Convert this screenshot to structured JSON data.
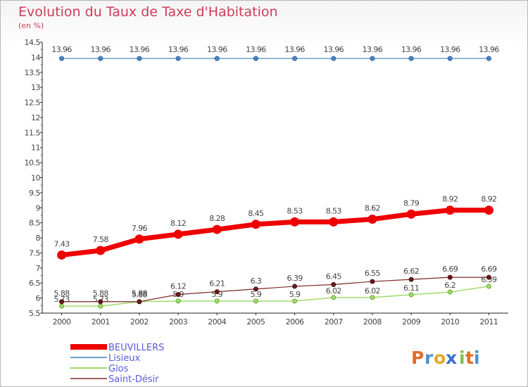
{
  "title": "Evolution du Taux de Taxe d'Habitation",
  "subtitle": "(en %)",
  "logo": {
    "letters": [
      "P",
      "r",
      "o",
      "x",
      "i",
      "t",
      "i"
    ],
    "colors": [
      "#e46a2b",
      "#4a93d4",
      "#e4a92b",
      "#3b6fd1",
      "#7fbf4a",
      "#e46a2b",
      "#4a93d4"
    ]
  },
  "chart_data": {
    "type": "line",
    "categories": [
      "2000",
      "2001",
      "2002",
      "2003",
      "2004",
      "2005",
      "2006",
      "2007",
      "2008",
      "2009",
      "2010",
      "2011"
    ],
    "ylim": [
      5.5,
      14.5
    ],
    "y_ticks": [
      "5.5",
      "6",
      "6.5",
      "7",
      "7.5",
      "8",
      "8.5",
      "9",
      "9.5",
      "10",
      "10.5",
      "11",
      "11.5",
      "12",
      "12.5",
      "13",
      "13.5",
      "14",
      "14.5"
    ],
    "grid": false,
    "legend_position": "bottom-left",
    "series": [
      {
        "name": "BEUVILLERS",
        "color": "#ee0000",
        "values": [
          7.43,
          7.58,
          7.96,
          8.12,
          8.28,
          8.45,
          8.53,
          8.53,
          8.62,
          8.79,
          8.92,
          8.92
        ],
        "labels": [
          "7.43",
          "7.58",
          "7.96",
          "8.12",
          "8.28",
          "8.45",
          "8.53",
          "8.53",
          "8.62",
          "8.79",
          "8.92",
          "8.92"
        ]
      },
      {
        "name": "Lisieux",
        "color": "#6fa0c8",
        "values": [
          13.96,
          13.96,
          13.96,
          13.96,
          13.96,
          13.96,
          13.96,
          13.96,
          13.96,
          13.96,
          13.96,
          13.96
        ],
        "labels": [
          "13.96",
          "13.96",
          "13.96",
          "13.96",
          "13.96",
          "13.96",
          "13.96",
          "13.96",
          "13.96",
          "13.96",
          "13.96",
          "13.96"
        ]
      },
      {
        "name": "Glos",
        "color": "#9fdc6a",
        "values": [
          5.73,
          5.73,
          5.88,
          5.9,
          5.9,
          5.9,
          5.9,
          6.02,
          6.02,
          6.11,
          6.2,
          6.39
        ],
        "labels": [
          "5.73",
          "5.73",
          "5.88",
          "5.9",
          "5.9",
          "5.9",
          "5.9",
          "6.02",
          "6.02",
          "6.11",
          "6.2",
          "6.39"
        ]
      },
      {
        "name": "Saint-Désir",
        "color": "#7a2a2a",
        "values": [
          5.88,
          5.88,
          5.88,
          6.12,
          6.21,
          6.3,
          6.39,
          6.45,
          6.55,
          6.62,
          6.69,
          6.69
        ],
        "labels": [
          "5.88",
          "5.88",
          "5.88",
          "6.12",
          "6.21",
          "6.3",
          "6.39",
          "6.45",
          "6.55",
          "6.62",
          "6.69",
          "6.69"
        ]
      }
    ]
  }
}
